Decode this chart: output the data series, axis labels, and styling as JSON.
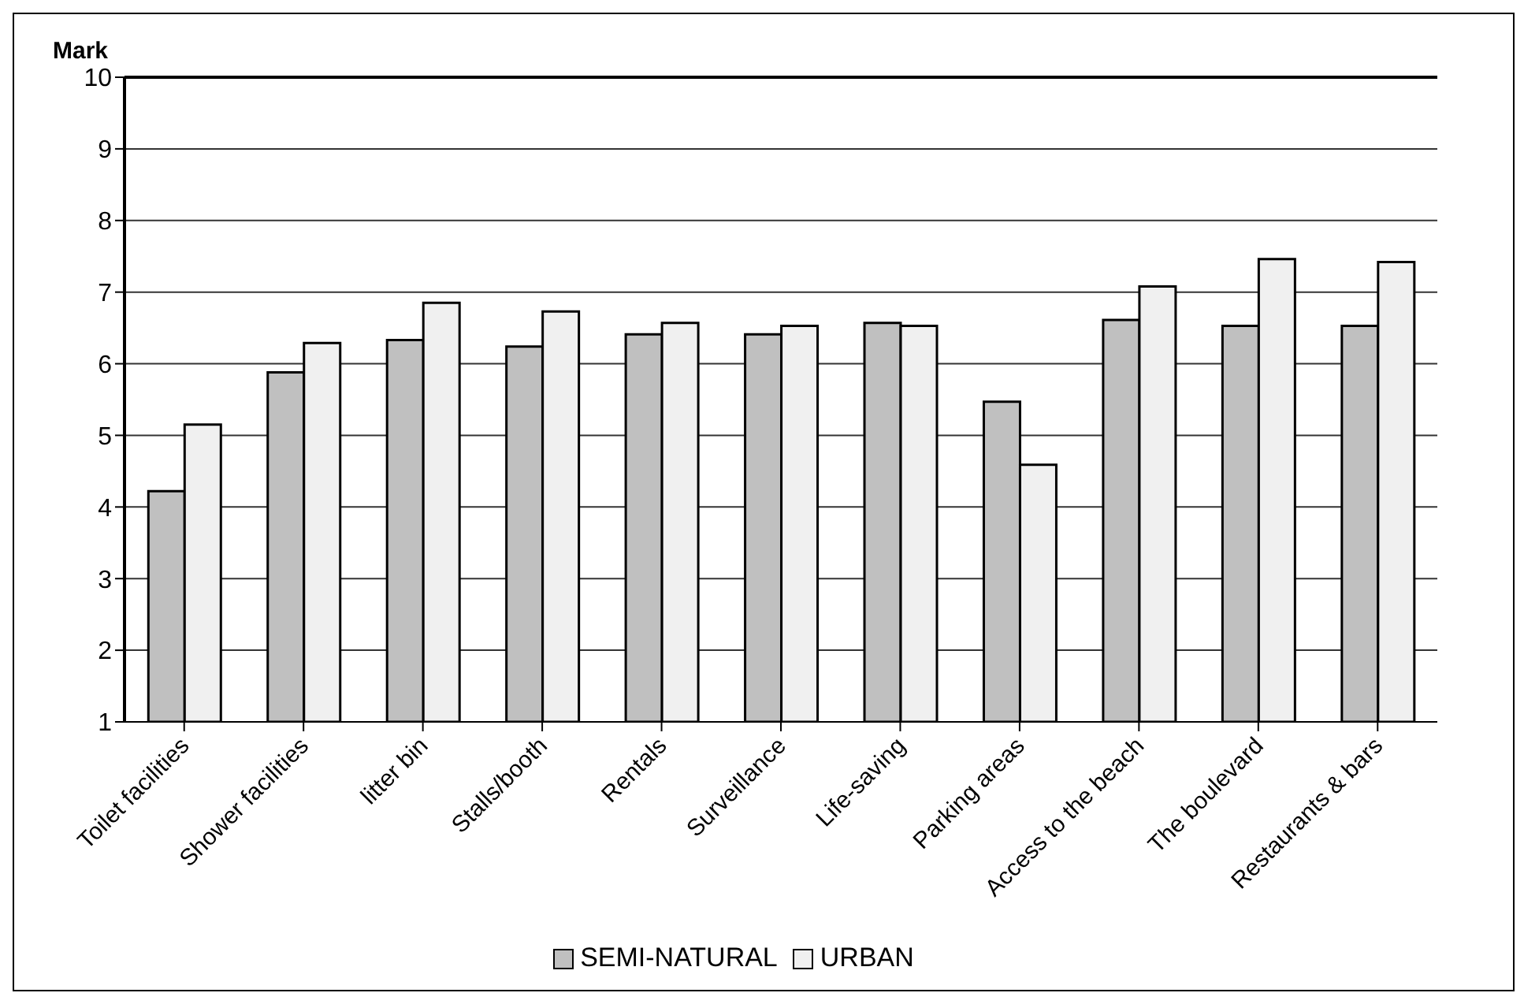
{
  "chart_data": {
    "type": "bar",
    "ylabel": "Mark",
    "categories": [
      "Toilet facilities",
      "Shower facilities",
      "litter bin",
      "Stalls/booth",
      "Rentals",
      "Surveillance",
      "Life-saving",
      "Parking areas",
      "Access to the beach",
      "The boulevard",
      "Restaurants & bars"
    ],
    "series": [
      {
        "name": "SEMI-NATURAL",
        "color": "#c0c0c0",
        "values": [
          4.22,
          5.88,
          6.33,
          6.24,
          6.41,
          6.41,
          6.57,
          5.47,
          6.61,
          6.53,
          6.53
        ]
      },
      {
        "name": "URBAN",
        "color": "#f0f0f0",
        "values": [
          5.15,
          6.29,
          6.85,
          6.73,
          6.57,
          6.53,
          6.53,
          4.59,
          7.08,
          7.46,
          7.42
        ]
      }
    ],
    "ylim": [
      1,
      10
    ],
    "yticks": [
      1,
      2,
      3,
      4,
      5,
      6,
      7,
      8,
      9,
      10
    ],
    "grid": "y",
    "legend": "bottom"
  }
}
